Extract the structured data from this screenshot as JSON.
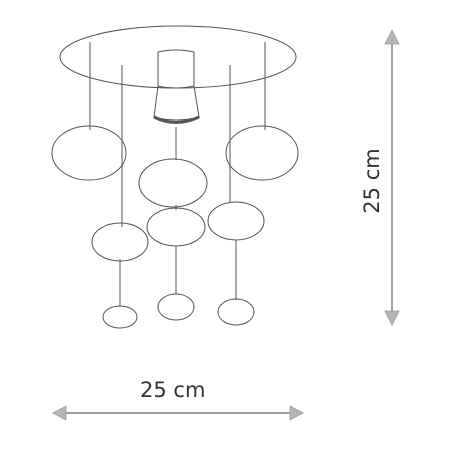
{
  "diagram": {
    "width_dimension": "25 cm",
    "height_dimension": "25 cm"
  }
}
